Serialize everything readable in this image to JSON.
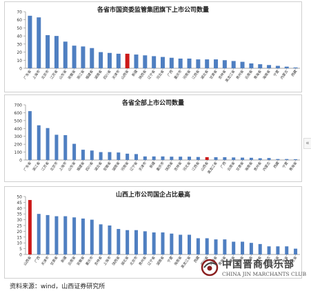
{
  "chart_data": [
    {
      "type": "bar",
      "title": "各省市国资委监管集团旗下上市公司数量",
      "categories": [
        "广东省",
        "上海市",
        "北京市",
        "江苏省",
        "山东省",
        "安徽省",
        "浙江省",
        "福建省",
        "湖南省",
        "四川省",
        "天津市",
        "山西省",
        "新疆",
        "陕西省",
        "辽宁省",
        "河北省",
        "广西",
        "重庆市",
        "河南省",
        "江西省",
        "湖北省",
        "甘肃省",
        "吉林省",
        "黑龙江省",
        "贵州省",
        "云南省",
        "青海省",
        "海南省",
        "宁夏",
        "内蒙古",
        "西藏"
      ],
      "values": [
        65,
        63,
        41,
        40,
        33,
        28,
        27,
        25,
        20,
        19,
        18,
        18,
        17,
        16,
        15,
        14,
        13,
        12,
        12,
        11,
        11,
        11,
        10,
        9,
        8,
        6,
        5,
        4,
        3,
        2,
        1
      ],
      "highlight": "山西省",
      "ylim": [
        0,
        70
      ],
      "yticks": [
        0,
        10,
        20,
        30,
        40,
        50,
        60,
        70
      ]
    },
    {
      "type": "bar",
      "title": "各省全部上市公司数量",
      "categories": [
        "广东省",
        "浙江省",
        "江苏省",
        "北京市",
        "上海市",
        "山东省",
        "福建省",
        "四川省",
        "湖北省",
        "安徽省",
        "湖南省",
        "河南省",
        "辽宁省",
        "天津市",
        "新疆",
        "重庆市",
        "陕西省",
        "吉林省",
        "河北省",
        "江西省",
        "山西省",
        "黑龙江省",
        "广西",
        "云南省",
        "甘肃省",
        "海南省",
        "贵州省",
        "内蒙古",
        "西藏",
        "宁夏",
        "青海省"
      ],
      "values": [
        620,
        440,
        405,
        320,
        315,
        205,
        130,
        120,
        100,
        100,
        95,
        80,
        75,
        45,
        45,
        45,
        42,
        42,
        42,
        38,
        36,
        35,
        35,
        32,
        30,
        28,
        22,
        25,
        12,
        12,
        10
      ],
      "highlight": "山西省",
      "ylim": [
        0,
        700
      ],
      "yticks": [
        0,
        100,
        200,
        300,
        400,
        500,
        600,
        700
      ]
    },
    {
      "type": "bar",
      "title": "山西上市公司国企占比最高",
      "categories": [
        "山西省",
        "广西",
        "天津市",
        "甘肃省",
        "新疆",
        "云南省",
        "安徽省",
        "重庆市",
        "吉林省",
        "上海市",
        "陕西省",
        "湖北省",
        "北京市",
        "贵州省",
        "辽宁省",
        "湖南省",
        "宁夏",
        "海南省",
        "黑龙江省",
        "西藏",
        "四川省",
        "河南省",
        "青海省",
        "福建省",
        "河北省",
        "山东省",
        "江西省",
        "内蒙古",
        "江苏省",
        "广东省",
        "浙江省"
      ],
      "values": [
        47,
        35,
        34,
        33,
        33,
        32,
        31,
        30,
        26,
        25,
        22,
        21,
        21,
        20,
        19,
        19,
        18,
        17,
        17,
        14,
        14,
        13,
        13,
        11,
        11,
        10,
        9,
        7,
        7,
        7,
        5
      ],
      "highlight": "山西省",
      "ylim": [
        0,
        50
      ],
      "yticks": [
        0,
        5,
        10,
        15,
        20,
        25,
        30,
        35,
        40,
        45,
        50
      ]
    }
  ],
  "colors": {
    "bar": "#4f7fc1",
    "highlight": "#cc1a1a",
    "axis": "#888888",
    "grid": "#dddddd"
  },
  "source": "资料来源：wind，山西证券研究所",
  "logo": {
    "cn": "中国晋商俱乐部",
    "en": "CHINA JIN MARCHANTS CLUB"
  },
  "side_button": "«"
}
